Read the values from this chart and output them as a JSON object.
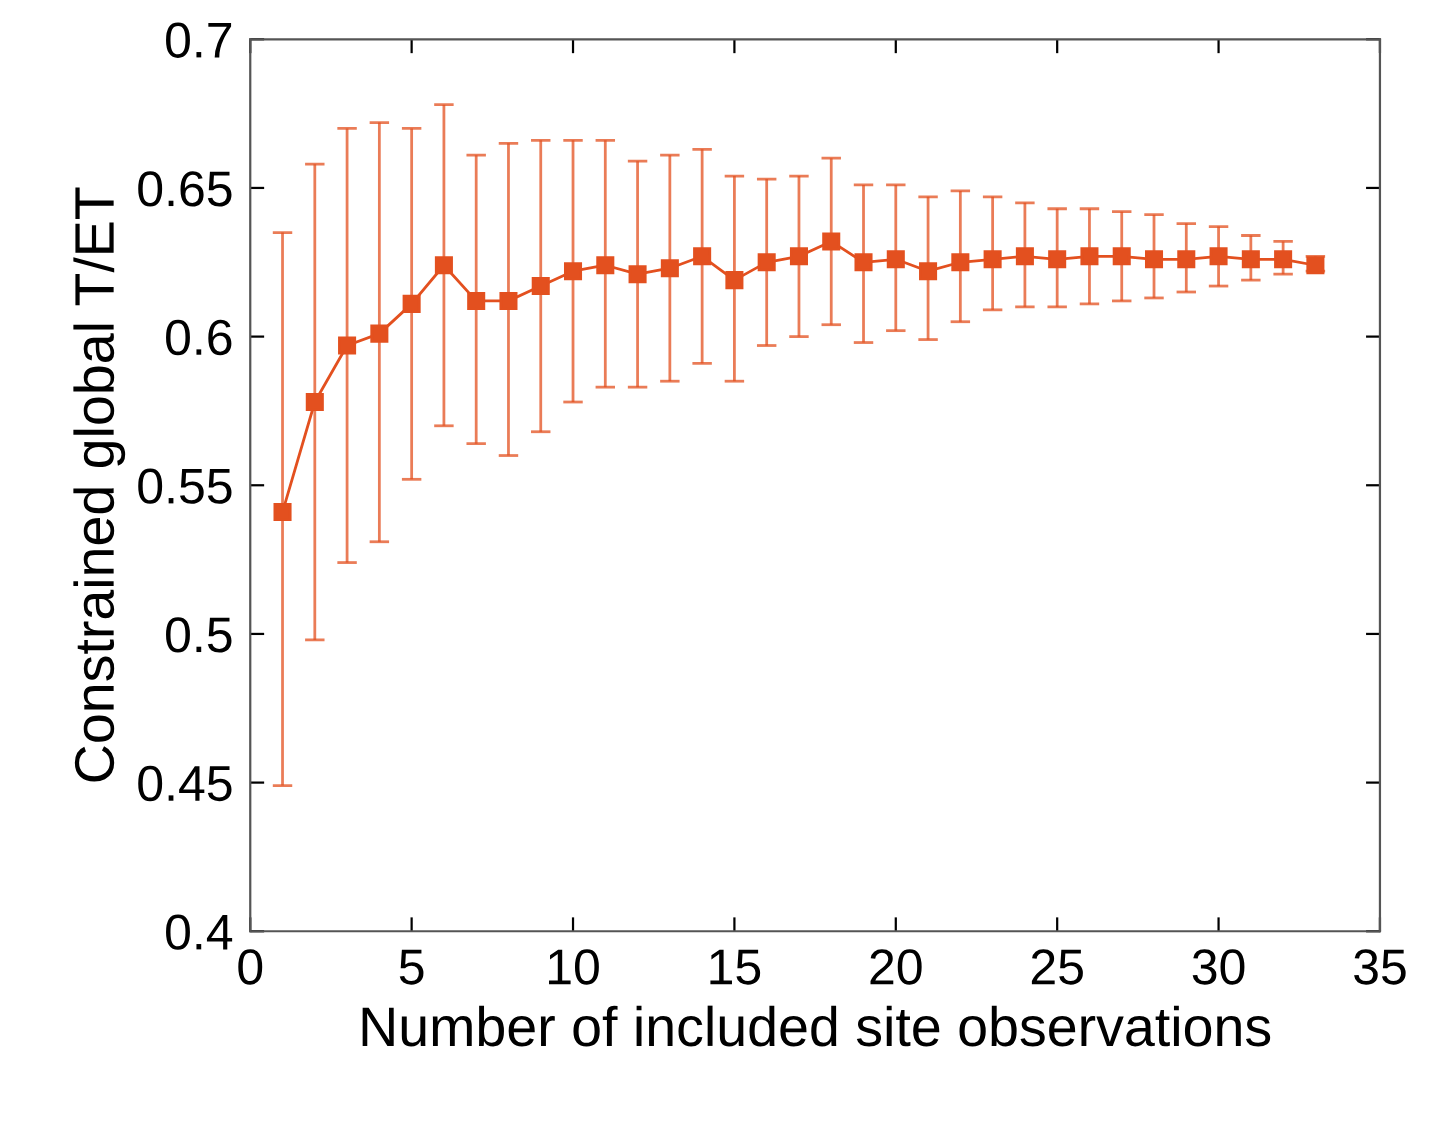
{
  "chart_data": {
    "type": "line",
    "xlabel": "Number of included site observations",
    "ylabel": "Constrained global T/ET",
    "x": [
      1,
      2,
      3,
      4,
      5,
      6,
      7,
      8,
      9,
      10,
      11,
      12,
      13,
      14,
      15,
      16,
      17,
      18,
      19,
      20,
      21,
      22,
      23,
      24,
      25,
      26,
      27,
      28,
      29,
      30,
      31,
      32,
      33
    ],
    "series": [
      {
        "color": "#e3501f",
        "marker": "square",
        "values": [
          0.541,
          0.578,
          0.597,
          0.601,
          0.611,
          0.624,
          0.612,
          0.612,
          0.617,
          0.622,
          0.624,
          0.621,
          0.623,
          0.627,
          0.619,
          0.625,
          0.627,
          0.632,
          0.625,
          0.626,
          0.622,
          0.625,
          0.626,
          0.627,
          0.626,
          0.627,
          0.627,
          0.626,
          0.626,
          0.627,
          0.626,
          0.626,
          0.624
        ],
        "errors": [
          [
            0.449,
            0.635
          ],
          [
            0.498,
            0.658
          ],
          [
            0.524,
            0.67
          ],
          [
            0.531,
            0.672
          ],
          [
            0.552,
            0.67
          ],
          [
            0.57,
            0.678
          ],
          [
            0.564,
            0.661
          ],
          [
            0.56,
            0.665
          ],
          [
            0.568,
            0.666
          ],
          [
            0.578,
            0.666
          ],
          [
            0.583,
            0.666
          ],
          [
            0.583,
            0.659
          ],
          [
            0.585,
            0.661
          ],
          [
            0.591,
            0.663
          ],
          [
            0.585,
            0.654
          ],
          [
            0.597,
            0.653
          ],
          [
            0.6,
            0.654
          ],
          [
            0.604,
            0.66
          ],
          [
            0.598,
            0.651
          ],
          [
            0.602,
            0.651
          ],
          [
            0.599,
            0.647
          ],
          [
            0.605,
            0.649
          ],
          [
            0.609,
            0.647
          ],
          [
            0.61,
            0.645
          ],
          [
            0.61,
            0.643
          ],
          [
            0.611,
            0.643
          ],
          [
            0.612,
            0.642
          ],
          [
            0.613,
            0.641
          ],
          [
            0.615,
            0.638
          ],
          [
            0.617,
            0.637
          ],
          [
            0.619,
            0.634
          ],
          [
            0.621,
            0.632
          ],
          [
            0.622,
            0.627
          ]
        ]
      }
    ],
    "xlim": [
      0,
      35
    ],
    "xticks": [
      0,
      5,
      10,
      15,
      20,
      25,
      30,
      35
    ],
    "ylim": [
      0.4,
      0.7
    ],
    "yticks": [
      0.4,
      0.45,
      0.5,
      0.55,
      0.6,
      0.65,
      0.7
    ],
    "grid": false,
    "legend": false
  }
}
